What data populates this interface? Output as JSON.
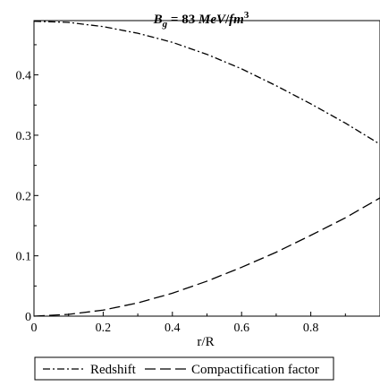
{
  "chart_data": {
    "type": "line",
    "title": {
      "symbol": "B",
      "subscript": "g",
      "equals": " = ",
      "value": "83",
      "unit_a": "MeV",
      "slash": "/",
      "unit_b": "fm",
      "superscript": "3"
    },
    "xlabel": "r/R",
    "ylabel": "",
    "xlim": [
      0,
      1
    ],
    "ylim": [
      0,
      0.49
    ],
    "x_ticks": [
      0,
      0.2,
      0.4,
      0.6,
      0.8
    ],
    "x_tick_labels": [
      "0",
      "0.2",
      "0.4",
      "0.6",
      "0.8"
    ],
    "y_ticks": [
      0,
      0.1,
      0.2,
      0.3,
      0.4
    ],
    "y_tick_labels": [
      "0",
      "0.1",
      "0.2",
      "0.3",
      "0.4"
    ],
    "grid": false,
    "legend_position": "bottom",
    "x": [
      0,
      0.1,
      0.2,
      0.3,
      0.4,
      0.5,
      0.6,
      0.7,
      0.8,
      0.9,
      1.0
    ],
    "series": [
      {
        "name": "Redshift",
        "style": "dash-dot",
        "color": "#000000",
        "values": [
          0.489,
          0.487,
          0.48,
          0.469,
          0.454,
          0.434,
          0.41,
          0.382,
          0.352,
          0.32,
          0.285
        ]
      },
      {
        "name": "Compactification factor",
        "style": "dashed",
        "color": "#000000",
        "values": [
          0.0,
          0.003,
          0.01,
          0.022,
          0.038,
          0.058,
          0.081,
          0.106,
          0.134,
          0.163,
          0.196
        ]
      }
    ]
  }
}
